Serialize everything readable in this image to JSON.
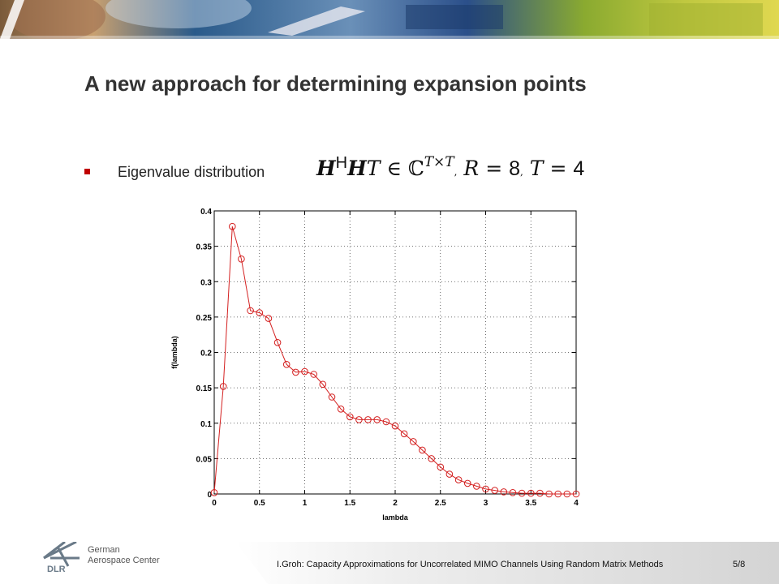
{
  "slide": {
    "title": "A new approach for determining expansion points",
    "bullet": {
      "text": "Eigenvalue distribution",
      "formula": {
        "matrix": "H",
        "hermitian": "H",
        "matrix2": "H",
        "dim": "T",
        "elem": "∈",
        "field": "ℂ",
        "size": "T×T",
        "comma1": ",",
        "r_var": "R",
        "eq1": "=",
        "r_val": "8",
        "comma2": ",",
        "t_var": "T",
        "eq2": "=",
        "t_val": "4"
      }
    },
    "footer": {
      "org_line1": "German",
      "org_line2": "Aerospace Center",
      "logo_text": "DLR",
      "presentation": "I.Groh: Capacity Approximations for Uncorrelated MIMO Channels Using Random Matrix Methods",
      "page": "5/8"
    }
  },
  "chart_data": {
    "type": "line",
    "xlabel": "lambda",
    "ylabel": "f(lambda)",
    "xlim": [
      0,
      4
    ],
    "ylim": [
      0,
      0.4
    ],
    "xticks": [
      "0",
      "0.5",
      "1",
      "1.5",
      "2",
      "2.5",
      "3",
      "3.5",
      "4"
    ],
    "yticks": [
      "0",
      "0.05",
      "0.1",
      "0.15",
      "0.2",
      "0.25",
      "0.3",
      "0.35",
      "0.4"
    ],
    "grid": true,
    "line_color": "#d42020",
    "marker": "circle",
    "series": [
      {
        "x": [
          0,
          0.1,
          0.2,
          0.3,
          0.4,
          0.5,
          0.6,
          0.7,
          0.8,
          0.9,
          1.0,
          1.1,
          1.2,
          1.3,
          1.4,
          1.5,
          1.6,
          1.7,
          1.8,
          1.9,
          2.0,
          2.1,
          2.2,
          2.3,
          2.4,
          2.5,
          2.6,
          2.7,
          2.8,
          2.9,
          3.0,
          3.1,
          3.2,
          3.3,
          3.4,
          3.5,
          3.6,
          3.7,
          3.8,
          3.9,
          4.0
        ],
        "y": [
          0.002,
          0.152,
          0.378,
          0.332,
          0.259,
          0.256,
          0.248,
          0.214,
          0.183,
          0.172,
          0.173,
          0.169,
          0.155,
          0.137,
          0.12,
          0.109,
          0.105,
          0.105,
          0.105,
          0.102,
          0.096,
          0.085,
          0.074,
          0.062,
          0.05,
          0.038,
          0.028,
          0.02,
          0.015,
          0.011,
          0.007,
          0.005,
          0.003,
          0.002,
          0.001,
          0.001,
          0.001,
          0,
          0,
          0,
          0
        ]
      }
    ]
  }
}
